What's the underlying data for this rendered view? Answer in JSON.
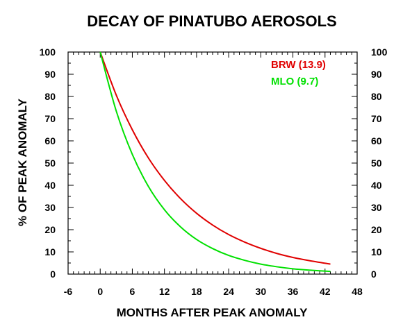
{
  "chart_data": {
    "type": "line",
    "title": "DECAY OF PINATUBO AEROSOLS",
    "xlabel": "MONTHS AFTER PEAK ANOMALY",
    "ylabel": "% OF PEAK ANOMALY",
    "xlim": [
      -6,
      48
    ],
    "ylim": [
      0,
      100
    ],
    "x_ticks": [
      -6,
      0,
      6,
      12,
      18,
      24,
      30,
      36,
      42,
      48
    ],
    "y_ticks": [
      0,
      10,
      20,
      30,
      40,
      50,
      60,
      70,
      80,
      90,
      100
    ],
    "y_ticks_right": true,
    "grid": false,
    "legend_position": "top-right",
    "series": [
      {
        "name": "BRW (13.9)",
        "color": "#e00000",
        "x": [
          0,
          3,
          6,
          9,
          12,
          15,
          18,
          21,
          24,
          27,
          30,
          33,
          36,
          39,
          43
        ],
        "y": [
          100,
          80.6,
          65.0,
          52.3,
          42.2,
          34.0,
          27.4,
          22.1,
          17.8,
          14.4,
          11.6,
          9.3,
          7.5,
          6.1,
          4.5
        ]
      },
      {
        "name": "MLO (9.7)",
        "color": "#00e000",
        "x": [
          0,
          3,
          6,
          9,
          12,
          15,
          18,
          21,
          24,
          27,
          30,
          33,
          36,
          39,
          43
        ],
        "y": [
          100,
          73.4,
          53.9,
          39.5,
          29.0,
          21.3,
          15.6,
          11.5,
          8.4,
          6.2,
          4.5,
          3.3,
          2.4,
          1.8,
          1.2
        ]
      }
    ]
  }
}
